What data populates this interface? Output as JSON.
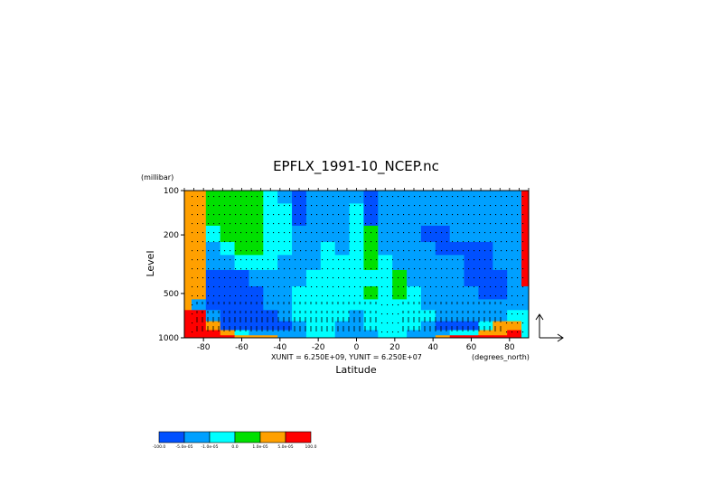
{
  "chart_data": {
    "type": "heatmap",
    "title": "EPFLX_1991-10_NCEP.nc",
    "xlabel": "Latitude",
    "ylabel": "Level",
    "y_unit_label": "(millibar)",
    "x_unit_label": "(degrees_north)",
    "vector_scale_text": "XUNIT = 6.250E+09, YUNIT = 6.250E+07",
    "x_ticks": [
      "-80",
      "-60",
      "-40",
      "-20",
      "0",
      "20",
      "40",
      "60",
      "80"
    ],
    "x_tick_values": [
      -80,
      -60,
      -40,
      -20,
      0,
      20,
      40,
      60,
      80
    ],
    "y_ticks": [
      "100",
      "200",
      "500",
      "1000"
    ],
    "y_tick_values": [
      100,
      200,
      500,
      1000
    ],
    "xlim": [
      -90,
      90
    ],
    "ylim": [
      1000,
      100
    ],
    "y_scale": "log",
    "colorbar": {
      "colors": [
        "#0050ff",
        "#00a0ff",
        "#00ffff",
        "#00e000",
        "#ffa000",
        "#ff0000"
      ],
      "labels": [
        "-100.0",
        "-5.0e-05",
        "-1.0e-05",
        "0.0",
        "1.0e-05",
        "5.0e-05",
        "100.0"
      ]
    },
    "latitudes": [
      -90,
      -82.5,
      -75,
      -67.5,
      -60,
      -52.5,
      -45,
      -37.5,
      -30,
      -22.5,
      -15,
      -7.5,
      0,
      7.5,
      15,
      22.5,
      30,
      37.5,
      45,
      52.5,
      60,
      67.5,
      75,
      82.5,
      90
    ],
    "levels": [
      100,
      150,
      200,
      250,
      300,
      400,
      500,
      600,
      700,
      850,
      925,
      1000
    ],
    "class_grid": [
      [
        5,
        5,
        4,
        4,
        4,
        4,
        3,
        2,
        1,
        2,
        2,
        2,
        2,
        1,
        2,
        2,
        2,
        2,
        2,
        2,
        2,
        2,
        2,
        2,
        6
      ],
      [
        5,
        5,
        4,
        4,
        4,
        4,
        3,
        3,
        1,
        2,
        2,
        2,
        3,
        1,
        2,
        2,
        2,
        2,
        2,
        2,
        2,
        2,
        2,
        2,
        6
      ],
      [
        5,
        5,
        3,
        4,
        4,
        4,
        3,
        3,
        2,
        2,
        2,
        2,
        3,
        4,
        2,
        2,
        2,
        1,
        1,
        2,
        2,
        2,
        2,
        2,
        6
      ],
      [
        5,
        5,
        2,
        3,
        4,
        4,
        3,
        3,
        2,
        2,
        3,
        2,
        3,
        4,
        2,
        2,
        2,
        2,
        1,
        1,
        1,
        1,
        2,
        2,
        6
      ],
      [
        5,
        5,
        2,
        2,
        3,
        3,
        3,
        2,
        2,
        2,
        3,
        3,
        3,
        4,
        3,
        2,
        2,
        2,
        2,
        2,
        1,
        1,
        2,
        2,
        6
      ],
      [
        5,
        5,
        1,
        1,
        1,
        2,
        2,
        2,
        2,
        3,
        3,
        3,
        3,
        3,
        3,
        4,
        2,
        2,
        2,
        2,
        1,
        1,
        1,
        2,
        6
      ],
      [
        5,
        5,
        1,
        1,
        1,
        1,
        2,
        2,
        3,
        3,
        3,
        3,
        3,
        4,
        3,
        4,
        3,
        2,
        2,
        2,
        2,
        1,
        1,
        2,
        2
      ],
      [
        5,
        2,
        1,
        1,
        1,
        1,
        2,
        2,
        3,
        3,
        3,
        3,
        3,
        3,
        3,
        3,
        3,
        2,
        2,
        2,
        2,
        2,
        2,
        2,
        2
      ],
      [
        6,
        6,
        2,
        1,
        1,
        1,
        1,
        2,
        3,
        3,
        3,
        3,
        2,
        3,
        3,
        3,
        3,
        3,
        2,
        2,
        2,
        2,
        2,
        3,
        3
      ],
      [
        6,
        6,
        5,
        1,
        1,
        1,
        1,
        1,
        2,
        3,
        3,
        2,
        2,
        3,
        3,
        3,
        3,
        2,
        1,
        1,
        1,
        3,
        5,
        5,
        3
      ],
      [
        6,
        6,
        6,
        5,
        3,
        2,
        2,
        2,
        2,
        3,
        3,
        2,
        2,
        2,
        3,
        3,
        2,
        2,
        2,
        3,
        3,
        5,
        5,
        6,
        3
      ],
      [
        6,
        6,
        6,
        6,
        5,
        5,
        5,
        2,
        2,
        3,
        3,
        2,
        2,
        2,
        3,
        3,
        2,
        2,
        5,
        6,
        6,
        6,
        6,
        6,
        3
      ]
    ]
  }
}
